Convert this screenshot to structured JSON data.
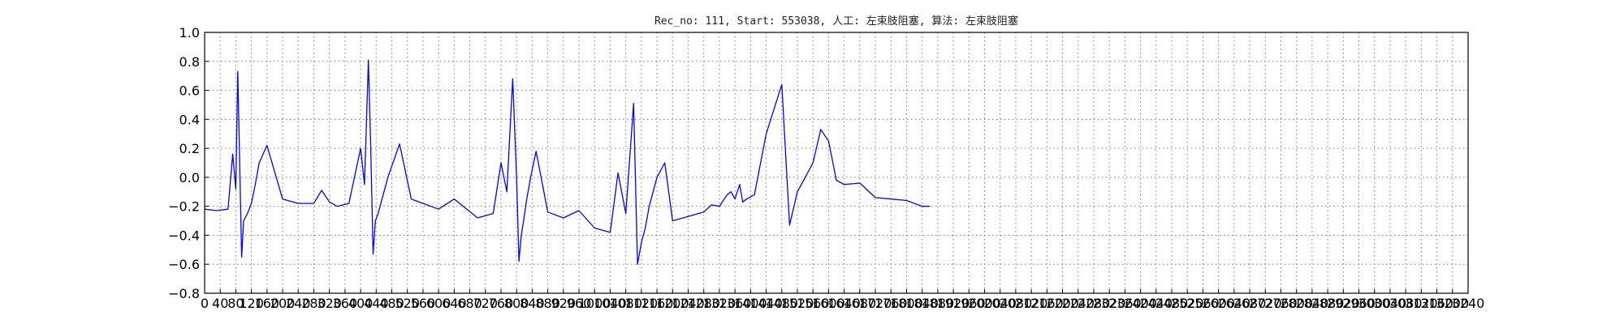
{
  "chart_data": {
    "type": "line",
    "title": "Rec_no: 111, Start: 553038, 人工: 左束肢阻塞, 算法: 左束肢阻塞",
    "xlabel": "",
    "ylabel": "",
    "xlim": [
      0,
      3240
    ],
    "ylim": [
      -0.8,
      1.0
    ],
    "grid": true,
    "x_ticks": [
      "0",
      "40",
      "80",
      "120",
      "160",
      "200",
      "240",
      "280",
      "320",
      "360",
      "400",
      "440",
      "480",
      "520",
      "560",
      "600",
      "640",
      "680",
      "720",
      "760",
      "800",
      "840",
      "880",
      "920",
      "960",
      "1000",
      "1040",
      "1080",
      "1120",
      "1160",
      "1200",
      "1240",
      "1280",
      "1320",
      "1360",
      "1400",
      "1440",
      "1480",
      "1520",
      "1560",
      "1600",
      "1640",
      "1680",
      "1720",
      "1760",
      "1800",
      "1840",
      "1880",
      "1920",
      "1960",
      "2000",
      "2040",
      "2080",
      "2120",
      "2160",
      "2200",
      "2240",
      "2280",
      "2320",
      "2360",
      "2400",
      "2440",
      "2480",
      "2520",
      "2560",
      "2600",
      "2640",
      "2680",
      "2720",
      "2760",
      "2800",
      "2840",
      "2880",
      "2920",
      "2960",
      "3000",
      "3040",
      "3080",
      "3120",
      "3160",
      "3200",
      "3240"
    ],
    "y_ticks": [
      "−0.8",
      "−0.6",
      "−0.4",
      "−0.2",
      "0.0",
      "0.2",
      "0.4",
      "0.6",
      "0.8",
      "1.0"
    ],
    "series": [
      {
        "color": "#0000ff",
        "x": [
          0,
          30,
          60,
          72,
          80,
          85,
          90,
          95,
          100,
          110,
          120,
          130,
          140,
          160,
          200,
          240,
          280,
          300,
          320,
          340,
          370,
          400,
          410,
          420,
          426,
          432,
          438,
          445,
          455,
          470,
          500,
          530,
          560,
          580,
          600,
          640,
          700,
          740,
          760,
          775,
          790,
          800,
          806,
          812,
          818,
          826,
          836,
          850,
          880,
          920,
          960,
          1000,
          1040,
          1060,
          1080,
          1100,
          1110,
          1120,
          1130,
          1140,
          1160,
          1180,
          1200,
          1240,
          1280,
          1300,
          1320,
          1340,
          1350,
          1360,
          1366,
          1372,
          1380,
          1390,
          1410,
          1440,
          1480,
          1500,
          1520,
          1540,
          1560,
          1580,
          1600,
          1620,
          1640,
          1680,
          1720,
          1760,
          1800,
          1840,
          1860
        ],
        "y": [
          -0.22,
          -0.23,
          -0.22,
          0.16,
          -0.08,
          0.73,
          0.1,
          -0.55,
          -0.3,
          -0.25,
          -0.18,
          -0.05,
          0.1,
          0.22,
          -0.15,
          -0.18,
          -0.18,
          -0.09,
          -0.17,
          -0.2,
          -0.18,
          0.2,
          -0.05,
          0.81,
          0.2,
          -0.53,
          -0.3,
          -0.25,
          -0.15,
          0.0,
          0.23,
          -0.15,
          -0.18,
          -0.2,
          -0.22,
          -0.15,
          -0.28,
          -0.25,
          0.1,
          -0.1,
          0.68,
          0.0,
          -0.58,
          -0.4,
          -0.3,
          -0.15,
          0.0,
          0.18,
          -0.24,
          -0.28,
          -0.23,
          -0.35,
          -0.38,
          0.03,
          -0.25,
          0.51,
          -0.6,
          -0.45,
          -0.35,
          -0.2,
          0.0,
          0.1,
          -0.3,
          -0.27,
          -0.24,
          -0.19,
          -0.2,
          -0.12,
          -0.1,
          -0.15,
          -0.1,
          -0.05,
          -0.17,
          -0.15,
          -0.12,
          0.3,
          0.64,
          -0.33,
          -0.1,
          0.0,
          0.1,
          0.33,
          0.25,
          -0.02,
          -0.05,
          -0.04,
          -0.14,
          -0.15,
          -0.16,
          -0.2,
          -0.2
        ]
      }
    ]
  }
}
